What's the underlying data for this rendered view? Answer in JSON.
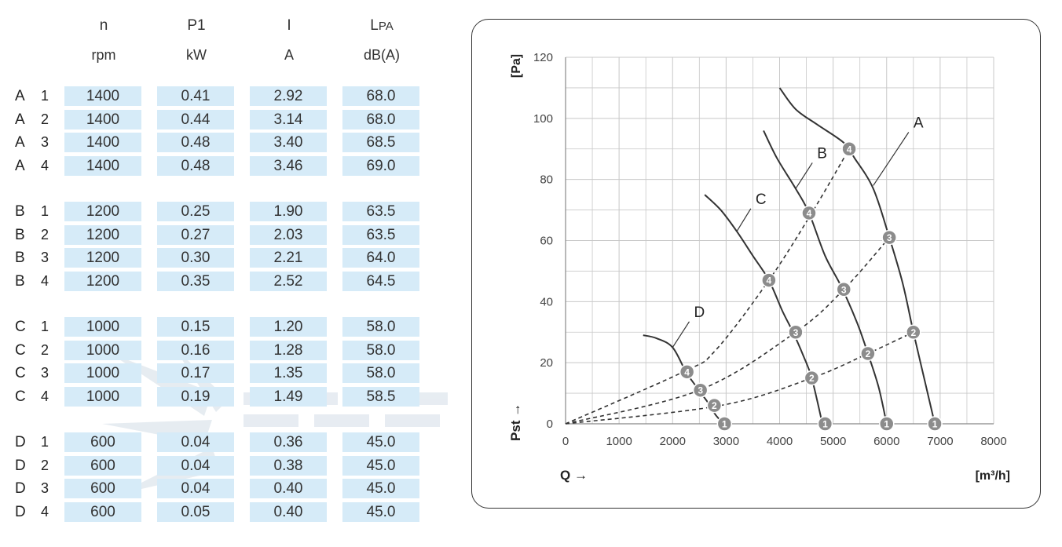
{
  "table": {
    "headers": [
      {
        "symbol": "n",
        "unit": "rpm"
      },
      {
        "symbol": "P1",
        "unit": "kW"
      },
      {
        "symbol": "I",
        "unit": "A"
      },
      {
        "symbol": "L",
        "symbol_sub": "PA",
        "unit": "dB(A)"
      }
    ],
    "groups": [
      {
        "letter": "A",
        "rows": [
          {
            "step": "1",
            "n": "1400",
            "p1": "0.41",
            "i": "2.92",
            "lpa": "68.0"
          },
          {
            "step": "2",
            "n": "1400",
            "p1": "0.44",
            "i": "3.14",
            "lpa": "68.0"
          },
          {
            "step": "3",
            "n": "1400",
            "p1": "0.48",
            "i": "3.40",
            "lpa": "68.5"
          },
          {
            "step": "4",
            "n": "1400",
            "p1": "0.48",
            "i": "3.46",
            "lpa": "69.0"
          }
        ]
      },
      {
        "letter": "B",
        "rows": [
          {
            "step": "1",
            "n": "1200",
            "p1": "0.25",
            "i": "1.90",
            "lpa": "63.5"
          },
          {
            "step": "2",
            "n": "1200",
            "p1": "0.27",
            "i": "2.03",
            "lpa": "63.5"
          },
          {
            "step": "3",
            "n": "1200",
            "p1": "0.30",
            "i": "2.21",
            "lpa": "64.0"
          },
          {
            "step": "4",
            "n": "1200",
            "p1": "0.35",
            "i": "2.52",
            "lpa": "64.5"
          }
        ]
      },
      {
        "letter": "C",
        "rows": [
          {
            "step": "1",
            "n": "1000",
            "p1": "0.15",
            "i": "1.20",
            "lpa": "58.0"
          },
          {
            "step": "2",
            "n": "1000",
            "p1": "0.16",
            "i": "1.28",
            "lpa": "58.0"
          },
          {
            "step": "3",
            "n": "1000",
            "p1": "0.17",
            "i": "1.35",
            "lpa": "58.0"
          },
          {
            "step": "4",
            "n": "1000",
            "p1": "0.19",
            "i": "1.49",
            "lpa": "58.5"
          }
        ]
      },
      {
        "letter": "D",
        "rows": [
          {
            "step": "1",
            "n": "600",
            "p1": "0.04",
            "i": "0.36",
            "lpa": "45.0"
          },
          {
            "step": "2",
            "n": "600",
            "p1": "0.04",
            "i": "0.38",
            "lpa": "45.0"
          },
          {
            "step": "3",
            "n": "600",
            "p1": "0.04",
            "i": "0.40",
            "lpa": "45.0"
          },
          {
            "step": "4",
            "n": "600",
            "p1": "0.05",
            "i": "0.40",
            "lpa": "45.0"
          }
        ]
      }
    ],
    "cell_color": "#d6ebf8"
  },
  "chart_data": {
    "type": "line",
    "xlabel": "Q →",
    "xunit": "[m³/h]",
    "ylabel": "Pst →",
    "yunit": "[Pa]",
    "xlim": [
      0,
      8000
    ],
    "ylim": [
      0,
      120
    ],
    "xticks": [
      "0",
      "1000",
      "2000",
      "3000",
      "4000",
      "5000",
      "6000",
      "7000",
      "8000"
    ],
    "yticks": [
      "0",
      "20",
      "40",
      "60",
      "80",
      "100",
      "120"
    ],
    "grid": true,
    "series": [
      {
        "name": "A",
        "label_at": [
          6500,
          97
        ],
        "label_tip": [
          5750,
          78
        ],
        "points": [
          [
            4000,
            110
          ],
          [
            4300,
            103
          ],
          [
            4700,
            98
          ],
          [
            5200,
            92
          ],
          [
            5400,
            87
          ],
          [
            5750,
            77
          ],
          [
            6050,
            61
          ],
          [
            6300,
            46
          ],
          [
            6500,
            30
          ],
          [
            6700,
            15
          ],
          [
            6900,
            0
          ]
        ]
      },
      {
        "name": "B",
        "label_at": [
          4700,
          87
        ],
        "label_tip": [
          4300,
          77
        ],
        "points": [
          [
            3700,
            96
          ],
          [
            3950,
            87
          ],
          [
            4300,
            77
          ],
          [
            4550,
            69
          ],
          [
            4850,
            55
          ],
          [
            5150,
            45
          ],
          [
            5450,
            33
          ],
          [
            5650,
            23
          ],
          [
            5850,
            12
          ],
          [
            6000,
            0
          ]
        ]
      },
      {
        "name": "C",
        "label_at": [
          3550,
          72
        ],
        "label_tip": [
          3200,
          63
        ],
        "points": [
          [
            2600,
            75
          ],
          [
            2900,
            70
          ],
          [
            3200,
            63
          ],
          [
            3500,
            55
          ],
          [
            3800,
            47
          ],
          [
            4050,
            37
          ],
          [
            4250,
            30
          ],
          [
            4450,
            22
          ],
          [
            4600,
            15
          ],
          [
            4800,
            0
          ]
        ]
      },
      {
        "name": "D",
        "label_at": [
          2400,
          35
        ],
        "label_tip": [
          2000,
          25
        ],
        "points": [
          [
            1450,
            29
          ],
          [
            1700,
            28
          ],
          [
            2000,
            25
          ],
          [
            2250,
            17
          ],
          [
            2450,
            12
          ],
          [
            2700,
            6
          ],
          [
            2800,
            3
          ],
          [
            2950,
            0
          ]
        ]
      }
    ],
    "system_curves": [
      {
        "points": [
          [
            0,
            0
          ],
          [
            2200,
            17
          ],
          [
            2800,
            24
          ],
          [
            3800,
            47
          ],
          [
            4600,
            69
          ],
          [
            5300,
            90
          ]
        ]
      },
      {
        "points": [
          [
            0,
            0
          ],
          [
            2500,
            11
          ],
          [
            4300,
            30
          ],
          [
            5200,
            44
          ],
          [
            6050,
            61
          ]
        ]
      },
      {
        "points": [
          [
            0,
            0
          ],
          [
            2900,
            6
          ],
          [
            4600,
            15
          ],
          [
            5650,
            23
          ],
          [
            6500,
            30
          ]
        ]
      }
    ],
    "markers": [
      {
        "label": "1",
        "x": 2970,
        "y": 0
      },
      {
        "label": "2",
        "x": 2780,
        "y": 6
      },
      {
        "label": "3",
        "x": 2520,
        "y": 11
      },
      {
        "label": "4",
        "x": 2270,
        "y": 17
      },
      {
        "label": "1",
        "x": 4850,
        "y": 0
      },
      {
        "label": "2",
        "x": 4600,
        "y": 15
      },
      {
        "label": "3",
        "x": 4300,
        "y": 30
      },
      {
        "label": "4",
        "x": 3800,
        "y": 47
      },
      {
        "label": "1",
        "x": 6000,
        "y": 0
      },
      {
        "label": "2",
        "x": 5650,
        "y": 23
      },
      {
        "label": "3",
        "x": 5200,
        "y": 44
      },
      {
        "label": "4",
        "x": 4550,
        "y": 69
      },
      {
        "label": "1",
        "x": 6900,
        "y": 0
      },
      {
        "label": "2",
        "x": 6500,
        "y": 30
      },
      {
        "label": "3",
        "x": 6050,
        "y": 61
      },
      {
        "label": "4",
        "x": 5300,
        "y": 90
      }
    ],
    "colors": {
      "curve": "#333333",
      "grid": "#c8c8c8",
      "marker_fill": "#8c8c8c",
      "marker_stroke": "#ffffff",
      "marker_text": "#ffffff"
    }
  }
}
